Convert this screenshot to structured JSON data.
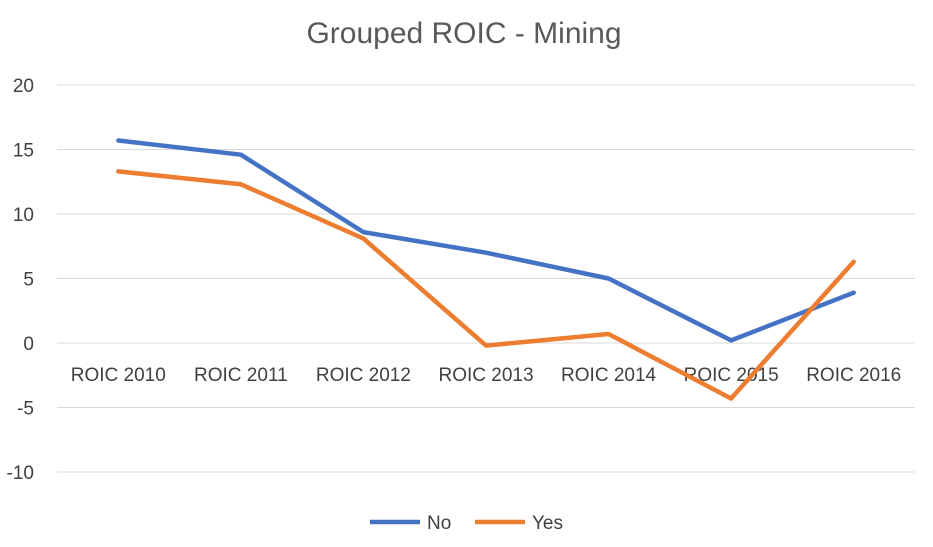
{
  "chart_data": {
    "type": "line",
    "title": "Grouped ROIC - Mining",
    "xlabel": "",
    "ylabel": "",
    "categories": [
      "ROIC 2010",
      "ROIC 2011",
      "ROIC 2012",
      "ROIC 2013",
      "ROIC 2014",
      "ROIC 2015",
      "ROIC 2016"
    ],
    "ylim": [
      -10,
      20
    ],
    "yticks": [
      20,
      15,
      10,
      5,
      0,
      -5,
      -10
    ],
    "grid": true,
    "legend_position": "bottom",
    "series": [
      {
        "name": "No",
        "color": "#4472c4",
        "values": [
          15.7,
          14.6,
          8.6,
          7.0,
          5.0,
          0.2,
          3.9
        ]
      },
      {
        "name": "Yes",
        "color": "#ed7d31",
        "values": [
          13.3,
          12.3,
          8.1,
          -0.2,
          0.7,
          -4.3,
          6.3
        ]
      }
    ]
  }
}
